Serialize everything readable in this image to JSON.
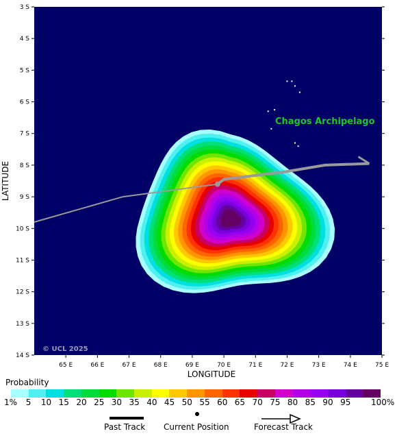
{
  "map": {
    "background_color": "#000066",
    "place_label": "Chagos Archipelago",
    "copyright": "© UCL 2025",
    "lon_axis": {
      "title": "LONGITUDE",
      "range": [
        64,
        75
      ],
      "ticks": [
        "65 E",
        "66 E",
        "67 E",
        "68 E",
        "69 E",
        "70 E",
        "71 E",
        "72 E",
        "73 E",
        "74 E",
        "75 E"
      ]
    },
    "lat_axis": {
      "title": "LATITUDE",
      "range": [
        3,
        14
      ],
      "ticks": [
        "3 S",
        "4 S",
        "5 S",
        "6 S",
        "7 S",
        "8 S",
        "9 S",
        "10 S",
        "11 S",
        "12 S",
        "13 S",
        "14 S"
      ]
    },
    "storm": {
      "center_lon": 70.2,
      "center_lat": 9.7,
      "current_position": {
        "lon": 69.8,
        "lat": 8.6
      },
      "past_track": [
        [
          64,
          9.8
        ],
        [
          66.8,
          9.0
        ],
        [
          69.8,
          8.6
        ]
      ],
      "forecast_track": [
        [
          69.8,
          8.6
        ],
        [
          70.0,
          8.45
        ],
        [
          72.0,
          8.2
        ],
        [
          73.2,
          8.0
        ],
        [
          74.6,
          7.95
        ]
      ]
    },
    "islands": [
      [
        72.0,
        5.35
      ],
      [
        72.15,
        5.35
      ],
      [
        72.25,
        5.5
      ],
      [
        72.4,
        5.7
      ],
      [
        71.4,
        6.3
      ],
      [
        71.6,
        6.25
      ],
      [
        71.5,
        6.85
      ],
      [
        72.25,
        7.3
      ],
      [
        72.35,
        7.4
      ]
    ]
  },
  "legend": {
    "title": "Probability",
    "colors": [
      "#a8ffff",
      "#50f0f0",
      "#00e0e0",
      "#00e07a",
      "#00dc3c",
      "#00dc00",
      "#6ee600",
      "#c8f000",
      "#ffff00",
      "#ffc800",
      "#ff9600",
      "#ff6400",
      "#ff3200",
      "#e60000",
      "#c80064",
      "#d200c8",
      "#b400e6",
      "#9600f0",
      "#7800dc",
      "#6400a0",
      "#640064"
    ],
    "labels": [
      "1%",
      "5",
      "10",
      "15",
      "20",
      "25",
      "30",
      "35",
      "40",
      "45",
      "50",
      "55",
      "60",
      "65",
      "70",
      "75",
      "80",
      "85",
      "90",
      "95",
      "100%"
    ]
  },
  "track_key": {
    "past": "Past Track",
    "current": "Current Position",
    "forecast": "Forecast Track"
  }
}
